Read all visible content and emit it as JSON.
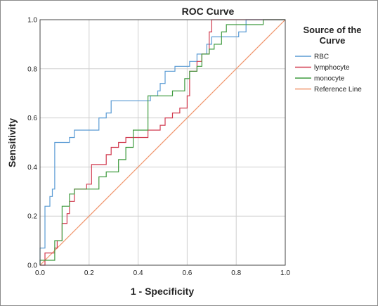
{
  "chart_data": {
    "type": "line",
    "title": "ROC Curve",
    "xlabel": "1 - Specificity",
    "ylabel": "Sensitivity",
    "xlim": [
      0,
      1
    ],
    "ylim": [
      0,
      1
    ],
    "grid": true,
    "x_ticks": [
      "0.0",
      "0.2",
      "0.4",
      "0.6",
      "0.8",
      "1.0"
    ],
    "y_ticks": [
      "0.0",
      "0.2",
      "0.4",
      "0.6",
      "0.8",
      "1.0"
    ],
    "legend_title_lines": [
      "Source of the",
      "Curve"
    ],
    "legend_position": "right",
    "series": [
      {
        "name": "RBC",
        "color": "#5a9bd4",
        "points": [
          [
            0,
            0
          ],
          [
            0,
            0.07
          ],
          [
            0.02,
            0.07
          ],
          [
            0.02,
            0.24
          ],
          [
            0.04,
            0.24
          ],
          [
            0.04,
            0.28
          ],
          [
            0.05,
            0.28
          ],
          [
            0.05,
            0.31
          ],
          [
            0.06,
            0.31
          ],
          [
            0.06,
            0.5
          ],
          [
            0.12,
            0.5
          ],
          [
            0.12,
            0.52
          ],
          [
            0.14,
            0.52
          ],
          [
            0.14,
            0.55
          ],
          [
            0.24,
            0.55
          ],
          [
            0.24,
            0.6
          ],
          [
            0.27,
            0.6
          ],
          [
            0.27,
            0.62
          ],
          [
            0.29,
            0.62
          ],
          [
            0.29,
            0.67
          ],
          [
            0.45,
            0.67
          ],
          [
            0.45,
            0.69
          ],
          [
            0.48,
            0.69
          ],
          [
            0.48,
            0.71
          ],
          [
            0.49,
            0.71
          ],
          [
            0.49,
            0.74
          ],
          [
            0.51,
            0.74
          ],
          [
            0.51,
            0.79
          ],
          [
            0.55,
            0.79
          ],
          [
            0.55,
            0.81
          ],
          [
            0.61,
            0.81
          ],
          [
            0.61,
            0.83
          ],
          [
            0.64,
            0.83
          ],
          [
            0.64,
            0.86
          ],
          [
            0.68,
            0.86
          ],
          [
            0.68,
            0.9
          ],
          [
            0.7,
            0.9
          ],
          [
            0.7,
            0.93
          ],
          [
            0.81,
            0.93
          ],
          [
            0.81,
            0.95
          ],
          [
            0.84,
            0.95
          ],
          [
            0.84,
            1
          ],
          [
            1,
            1
          ]
        ]
      },
      {
        "name": "lymphocyte",
        "color": "#d13a4f",
        "points": [
          [
            0,
            0
          ],
          [
            0.02,
            0
          ],
          [
            0.02,
            0.05
          ],
          [
            0.06,
            0.05
          ],
          [
            0.06,
            0.07
          ],
          [
            0.07,
            0.07
          ],
          [
            0.07,
            0.1
          ],
          [
            0.09,
            0.1
          ],
          [
            0.09,
            0.17
          ],
          [
            0.11,
            0.17
          ],
          [
            0.11,
            0.21
          ],
          [
            0.12,
            0.21
          ],
          [
            0.12,
            0.26
          ],
          [
            0.14,
            0.26
          ],
          [
            0.14,
            0.31
          ],
          [
            0.19,
            0.31
          ],
          [
            0.19,
            0.33
          ],
          [
            0.21,
            0.33
          ],
          [
            0.21,
            0.41
          ],
          [
            0.27,
            0.41
          ],
          [
            0.27,
            0.45
          ],
          [
            0.29,
            0.45
          ],
          [
            0.29,
            0.48
          ],
          [
            0.32,
            0.48
          ],
          [
            0.32,
            0.5
          ],
          [
            0.35,
            0.5
          ],
          [
            0.35,
            0.52
          ],
          [
            0.44,
            0.52
          ],
          [
            0.44,
            0.55
          ],
          [
            0.49,
            0.55
          ],
          [
            0.49,
            0.57
          ],
          [
            0.51,
            0.57
          ],
          [
            0.51,
            0.6
          ],
          [
            0.54,
            0.6
          ],
          [
            0.54,
            0.62
          ],
          [
            0.57,
            0.62
          ],
          [
            0.57,
            0.64
          ],
          [
            0.6,
            0.64
          ],
          [
            0.6,
            0.69
          ],
          [
            0.61,
            0.69
          ],
          [
            0.61,
            0.79
          ],
          [
            0.64,
            0.79
          ],
          [
            0.64,
            0.83
          ],
          [
            0.66,
            0.83
          ],
          [
            0.66,
            0.86
          ],
          [
            0.69,
            0.86
          ],
          [
            0.69,
            0.95
          ],
          [
            0.7,
            0.95
          ],
          [
            0.7,
            1
          ],
          [
            1,
            1
          ]
        ]
      },
      {
        "name": "monocyte",
        "color": "#3f9b3f",
        "points": [
          [
            0,
            0
          ],
          [
            0,
            0.02
          ],
          [
            0.06,
            0.02
          ],
          [
            0.06,
            0.1
          ],
          [
            0.09,
            0.1
          ],
          [
            0.09,
            0.24
          ],
          [
            0.12,
            0.24
          ],
          [
            0.12,
            0.29
          ],
          [
            0.14,
            0.29
          ],
          [
            0.14,
            0.31
          ],
          [
            0.24,
            0.31
          ],
          [
            0.24,
            0.36
          ],
          [
            0.27,
            0.36
          ],
          [
            0.27,
            0.38
          ],
          [
            0.32,
            0.38
          ],
          [
            0.32,
            0.43
          ],
          [
            0.35,
            0.43
          ],
          [
            0.35,
            0.48
          ],
          [
            0.38,
            0.48
          ],
          [
            0.38,
            0.55
          ],
          [
            0.44,
            0.55
          ],
          [
            0.44,
            0.69
          ],
          [
            0.54,
            0.69
          ],
          [
            0.54,
            0.71
          ],
          [
            0.59,
            0.71
          ],
          [
            0.59,
            0.76
          ],
          [
            0.61,
            0.76
          ],
          [
            0.61,
            0.79
          ],
          [
            0.64,
            0.79
          ],
          [
            0.64,
            0.81
          ],
          [
            0.66,
            0.81
          ],
          [
            0.66,
            0.86
          ],
          [
            0.69,
            0.86
          ],
          [
            0.69,
            0.88
          ],
          [
            0.71,
            0.88
          ],
          [
            0.71,
            0.9
          ],
          [
            0.74,
            0.9
          ],
          [
            0.74,
            0.95
          ],
          [
            0.76,
            0.95
          ],
          [
            0.76,
            0.98
          ],
          [
            0.91,
            0.98
          ],
          [
            0.91,
            1
          ],
          [
            1,
            1
          ]
        ]
      },
      {
        "name": "Reference Line",
        "color": "#f0956c",
        "points": [
          [
            0,
            0
          ],
          [
            1,
            1
          ]
        ]
      }
    ]
  }
}
